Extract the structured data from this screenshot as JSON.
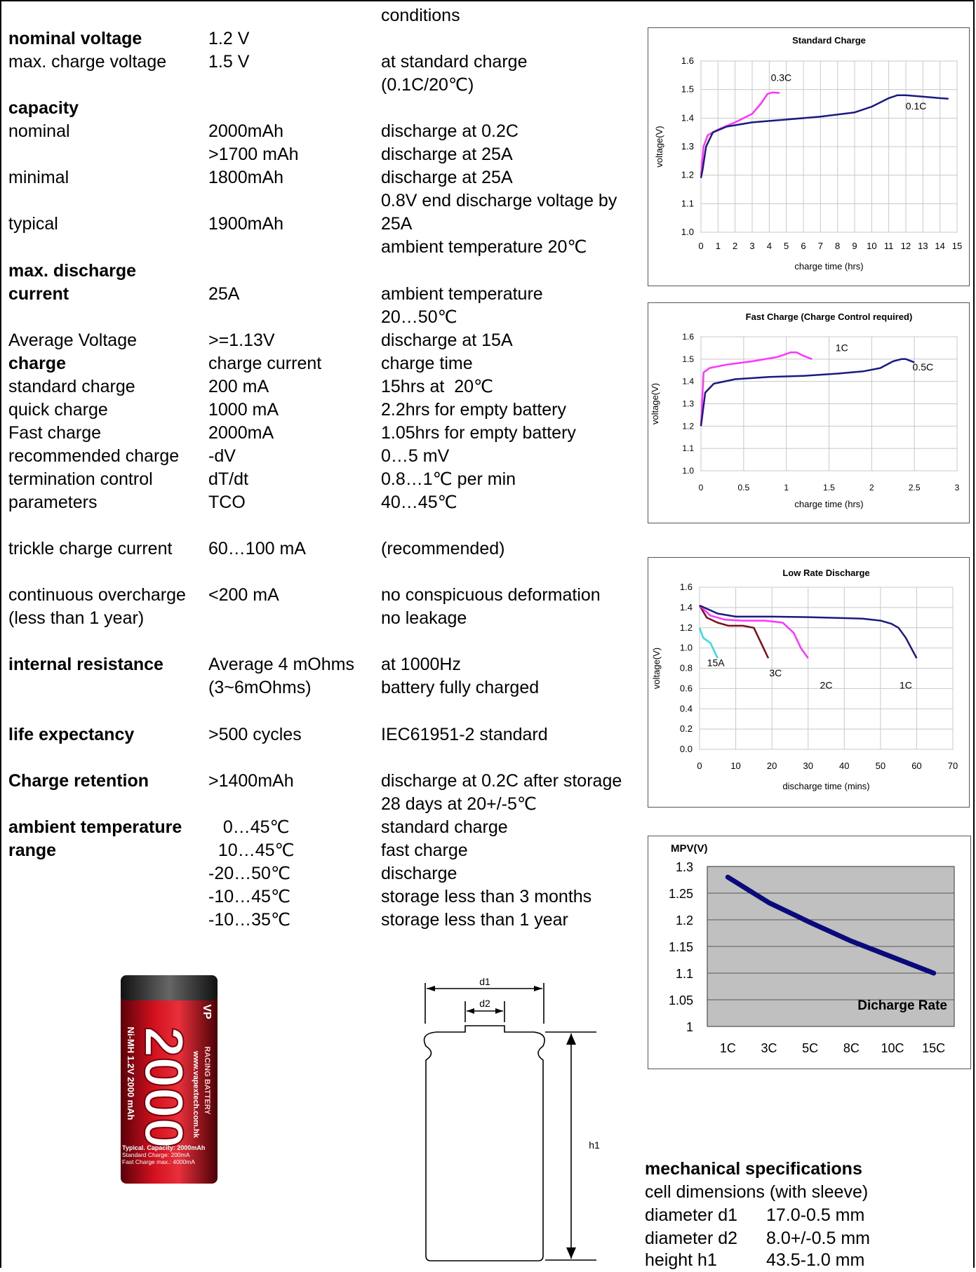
{
  "specs": {
    "conditions_header": "conditions",
    "rows": [
      {
        "c1": "nominal voltage",
        "b1": true,
        "c2": "1.2 V",
        "c3": ""
      },
      {
        "c1": "max. charge voltage",
        "b1": false,
        "c2": "1.5 V",
        "c3": "at standard charge"
      },
      {
        "c1": "",
        "b1": false,
        "c2": "",
        "c3": "(0.1C/20℃)"
      },
      {
        "c1": "capacity",
        "b1": true,
        "c2": "",
        "c3": ""
      },
      {
        "c1": "nominal",
        "b1": false,
        "c2": "2000mAh",
        "c3": "discharge at 0.2C"
      },
      {
        "c1": "",
        "b1": false,
        "c2": ">1700 mAh",
        "c3": "discharge at 25A"
      },
      {
        "c1": "minimal",
        "b1": false,
        "c2": "1800mAh",
        "c3": "discharge at 25A"
      },
      {
        "c1": "",
        "b1": false,
        "c2": "",
        "c3": "0.8V end discharge voltage by"
      },
      {
        "c1": "typical",
        "b1": false,
        "c2": "1900mAh",
        "c3": "25A"
      },
      {
        "c1": "",
        "b1": false,
        "c2": "",
        "c3": "ambient temperature 20℃"
      },
      {
        "c1": "max. discharge",
        "b1": true,
        "c2": "",
        "c3": ""
      },
      {
        "c1": "current",
        "b1": true,
        "c2": "25A",
        "c3": "ambient temperature"
      },
      {
        "c1": "",
        "b1": false,
        "c2": "",
        "c3": "20…50℃"
      },
      {
        "c1": "Average Voltage",
        "b1": false,
        "c2": ">=1.13V",
        "c3": "discharge at 15A"
      },
      {
        "c1": "charge",
        "b1": true,
        "c2": "charge current",
        "c3": "charge time"
      },
      {
        "c1": "standard charge",
        "b1": false,
        "c2": "200 mA",
        "c3": "15hrs at  20℃"
      },
      {
        "c1": "quick charge",
        "b1": false,
        "c2": "1000 mA",
        "c3": "2.2hrs for empty battery"
      },
      {
        "c1": "Fast charge",
        "b1": false,
        "c2": "2000mA",
        "c3": "1.05hrs for empty battery"
      },
      {
        "c1": "recommended charge",
        "b1": false,
        "c2": "-dV",
        "c3": "0…5 mV"
      },
      {
        "c1": "termination control",
        "b1": false,
        "c2": "dT/dt",
        "c3": "0.8…1℃ per min"
      },
      {
        "c1": "parameters",
        "b1": false,
        "c2": "TCO",
        "c3": "40…45℃"
      },
      {
        "c1": "",
        "b1": false,
        "c2": "",
        "c3": ""
      },
      {
        "c1": "trickle charge current",
        "b1": false,
        "c2": "60…100 mA",
        "c3": "(recommended)"
      },
      {
        "c1": "",
        "b1": false,
        "c2": "",
        "c3": ""
      },
      {
        "c1": "continuous overcharge",
        "b1": false,
        "c2": "<200 mA",
        "c3": "no conspicuous deformation"
      },
      {
        "c1": "(less than 1 year)",
        "b1": false,
        "c2": "",
        "c3": "no leakage"
      },
      {
        "c1": "",
        "b1": false,
        "c2": "",
        "c3": ""
      },
      {
        "c1": "internal resistance",
        "b1": true,
        "c2": "Average 4 mOhms",
        "c3": "at 1000Hz"
      },
      {
        "c1": "",
        "b1": false,
        "c2": "(3~6mOhms)",
        "c3": "battery fully charged"
      },
      {
        "c1": "",
        "b1": false,
        "c2": "",
        "c3": ""
      },
      {
        "c1": "life expectancy",
        "b1": true,
        "c2": ">500 cycles",
        "c3": "IEC61951-2 standard"
      },
      {
        "c1": "",
        "b1": false,
        "c2": "",
        "c3": ""
      },
      {
        "c1": "Charge retention",
        "b1": true,
        "c2": ">1400mAh",
        "c3": "discharge at 0.2C after storage"
      },
      {
        "c1": "",
        "b1": false,
        "c2": "",
        "c3": "28 days at 20+/-5℃"
      },
      {
        "c1": "ambient temperature",
        "b1": true,
        "c2": "   0…45℃",
        "c3": "standard charge"
      },
      {
        "c1": "range",
        "b1": true,
        "c2": "  10…45℃",
        "c3": "fast charge"
      },
      {
        "c1": "",
        "b1": false,
        "c2": "-20…50℃",
        "c3": "discharge"
      },
      {
        "c1": "",
        "b1": false,
        "c2": "-10…45℃",
        "c3": "storage less than 3 months"
      },
      {
        "c1": "",
        "b1": false,
        "c2": "-10…35℃",
        "c3": "storage less than 1 year"
      }
    ]
  },
  "chart_data": [
    {
      "type": "line",
      "title": "Standard Charge",
      "xlabel": "charge time (hrs)",
      "ylabel": "voltage(V)",
      "xlim": [
        0,
        15
      ],
      "ylim": [
        1.0,
        1.6
      ],
      "xticks": [
        0,
        1,
        2,
        3,
        4,
        5,
        6,
        7,
        8,
        9,
        10,
        11,
        12,
        13,
        14,
        15
      ],
      "yticks": [
        1.0,
        1.1,
        1.2,
        1.3,
        1.4,
        1.5,
        1.6
      ],
      "grid": true,
      "series": [
        {
          "name": "0.3C",
          "color": "#ff33ff",
          "x": [
            0,
            0.15,
            0.4,
            1,
            2,
            3,
            3.5,
            3.9,
            4.2,
            4.6
          ],
          "y": [
            1.2,
            1.3,
            1.34,
            1.36,
            1.385,
            1.415,
            1.45,
            1.485,
            1.49,
            1.488
          ]
        },
        {
          "name": "0.1C",
          "color": "#1a1a80",
          "x": [
            0,
            0.1,
            0.3,
            0.7,
            1.5,
            3,
            5,
            7,
            9,
            10,
            11,
            11.5,
            12,
            13,
            14,
            14.5
          ],
          "y": [
            1.19,
            1.22,
            1.3,
            1.35,
            1.37,
            1.385,
            1.395,
            1.405,
            1.42,
            1.44,
            1.47,
            1.48,
            1.48,
            1.475,
            1.47,
            1.468
          ]
        }
      ],
      "labels": [
        {
          "text": "0.3C",
          "x": 4.7,
          "y": 1.53
        },
        {
          "text": "0.1C",
          "x": 12.6,
          "y": 1.43
        }
      ]
    },
    {
      "type": "line",
      "title": "Fast Charge (Charge Control required)",
      "xlabel": "charge time (hrs)",
      "ylabel": "voltage(V)",
      "xlim": [
        0,
        3
      ],
      "ylim": [
        1.0,
        1.6
      ],
      "xticks": [
        0.0,
        0.5,
        1.0,
        1.5,
        2.0,
        2.5,
        3.0
      ],
      "yticks": [
        1.0,
        1.1,
        1.2,
        1.3,
        1.4,
        1.5,
        1.6
      ],
      "grid": true,
      "series": [
        {
          "name": "1C",
          "color": "#ff33ff",
          "x": [
            0,
            0.03,
            0.1,
            0.3,
            0.6,
            0.9,
            1.05,
            1.12,
            1.2,
            1.3
          ],
          "y": [
            1.2,
            1.44,
            1.46,
            1.475,
            1.49,
            1.51,
            1.53,
            1.53,
            1.515,
            1.5
          ]
        },
        {
          "name": "0.5C",
          "color": "#1a1a80",
          "x": [
            0,
            0.05,
            0.15,
            0.4,
            0.8,
            1.2,
            1.6,
            1.9,
            2.1,
            2.25,
            2.35,
            2.4,
            2.5
          ],
          "y": [
            1.2,
            1.35,
            1.39,
            1.41,
            1.42,
            1.425,
            1.435,
            1.445,
            1.46,
            1.49,
            1.5,
            1.5,
            1.485
          ]
        }
      ],
      "labels": [
        {
          "text": "1C",
          "x": 1.65,
          "y": 1.535
        },
        {
          "text": "0.5C",
          "x": 2.6,
          "y": 1.45
        }
      ]
    },
    {
      "type": "line",
      "title": "Low Rate Discharge",
      "xlabel": "discharge time (mins)",
      "ylabel": "voltage(V)",
      "xlim": [
        0,
        70
      ],
      "ylim": [
        0.0,
        1.6
      ],
      "xticks": [
        0,
        10,
        20,
        30,
        40,
        50,
        60,
        70
      ],
      "yticks": [
        0.0,
        0.2,
        0.4,
        0.6,
        0.8,
        1.0,
        1.2,
        1.4,
        1.6
      ],
      "grid": true,
      "series": [
        {
          "name": "15A",
          "color": "#33dddd",
          "x": [
            0,
            1,
            3,
            5
          ],
          "y": [
            1.2,
            1.1,
            1.05,
            0.9
          ]
        },
        {
          "name": "3C",
          "color": "#7a0f1a",
          "x": [
            0,
            2,
            5,
            8,
            12,
            15,
            17,
            19
          ],
          "y": [
            1.42,
            1.3,
            1.25,
            1.22,
            1.22,
            1.2,
            1.05,
            0.9
          ]
        },
        {
          "name": "2C",
          "color": "#ff33ff",
          "x": [
            0,
            3,
            7,
            12,
            18,
            23,
            26,
            28,
            30
          ],
          "y": [
            1.42,
            1.32,
            1.28,
            1.27,
            1.27,
            1.25,
            1.15,
            1.0,
            0.9
          ]
        },
        {
          "name": "1C",
          "color": "#1a1a80",
          "x": [
            0,
            5,
            10,
            20,
            30,
            40,
            45,
            50,
            53,
            55,
            57,
            60
          ],
          "y": [
            1.42,
            1.34,
            1.31,
            1.31,
            1.305,
            1.295,
            1.29,
            1.27,
            1.24,
            1.2,
            1.1,
            0.9
          ]
        }
      ],
      "labels": [
        {
          "text": "15A",
          "x": 4.5,
          "y": 0.82
        },
        {
          "text": "3C",
          "x": 21,
          "y": 0.72
        },
        {
          "text": "2C",
          "x": 35,
          "y": 0.6
        },
        {
          "text": "1C",
          "x": 57,
          "y": 0.6
        }
      ]
    },
    {
      "type": "line",
      "ylabel": "MPV(V)",
      "xlabel": "Dicharge Rate",
      "categories": [
        "1C",
        "3C",
        "5C",
        "8C",
        "10C",
        "15C"
      ],
      "ylim": [
        1.0,
        1.3
      ],
      "yticks": [
        1,
        1.05,
        1.1,
        1.15,
        1.2,
        1.25,
        1.3
      ],
      "grid": true,
      "series": [
        {
          "color": "#0a0a7a",
          "values": [
            1.28,
            1.232,
            1.195,
            1.16,
            1.13,
            1.1
          ]
        }
      ]
    }
  ],
  "battery": {
    "brand": "VP",
    "model": "2000",
    "side_text": "Ni-MH 1.2V 2000 mAh",
    "url": "www.vapextech.com.hk",
    "racing": "RACING BATTERY",
    "caption1": "Typical. Capacity: 2000mAh",
    "caption2": "Standard Charge: 200mA",
    "caption3": "Fast Charge max.: 4000mA"
  },
  "drawing": {
    "d1": "d1",
    "d2": "d2",
    "h1": "h1"
  },
  "mechanical": {
    "title": "mechanical specifications",
    "subtitle": "cell dimensions (with sleeve)",
    "rows": [
      {
        "label": "diameter d1",
        "value": "17.0-0.5 mm"
      },
      {
        "label": "diameter d2",
        "value": "8.0+/-0.5 mm"
      },
      {
        "label": "height h1",
        "value": "43.5-1.0 mm"
      }
    ]
  }
}
